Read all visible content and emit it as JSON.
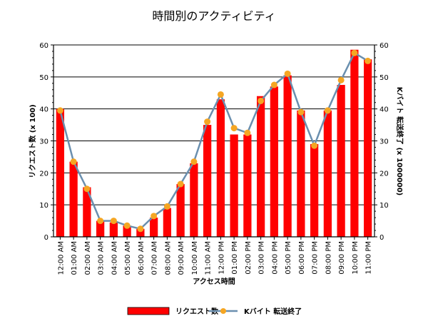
{
  "chart_data": {
    "type": "bar",
    "title": "時間別のアクティビティ",
    "xlabel": "アクセス時間",
    "ylabel": "リクエスト数 (x 100)",
    "y2label": "Kバイト 転送終了 (x 1000000)",
    "ylim": [
      0,
      60
    ],
    "y2lim": [
      0,
      60
    ],
    "yticks": [
      0,
      10,
      20,
      30,
      40,
      50,
      60
    ],
    "grid": true,
    "legend_position": "bottom",
    "categories": [
      "12:00 AM",
      "01:00 AM",
      "02:00 AM",
      "03:00 AM",
      "04:00 AM",
      "05:00 AM",
      "06:00 AM",
      "07:00 AM",
      "08:00 AM",
      "09:00 AM",
      "10:00 AM",
      "11:00 AM",
      "12:00 PM",
      "01:00 PM",
      "02:00 PM",
      "03:00 PM",
      "04:00 PM",
      "05:00 PM",
      "06:00 PM",
      "07:00 PM",
      "08:00 PM",
      "09:00 PM",
      "10:00 PM",
      "11:00 PM"
    ],
    "series": [
      {
        "name": "リクエスト数",
        "type": "bar",
        "axis": "left",
        "color": "#ff0000",
        "values": [
          40,
          23.5,
          15.5,
          5,
          4.5,
          3.5,
          2.5,
          6,
          9,
          16.5,
          23,
          35,
          43,
          32,
          32,
          44,
          47,
          50.5,
          39.5,
          29,
          39.5,
          47.5,
          58.5,
          55.5
        ]
      },
      {
        "name": "Kバイト 転送終了",
        "type": "line",
        "axis": "right",
        "line_color": "#6a8faf",
        "marker_color": "#f5a623",
        "values": [
          39.5,
          23.5,
          15,
          5,
          5,
          3.5,
          2.5,
          6.5,
          9.5,
          16.5,
          23.5,
          36,
          44.5,
          34,
          32.5,
          42.5,
          47.5,
          51,
          39,
          28.5,
          39.5,
          49,
          57.5,
          55
        ]
      }
    ]
  }
}
